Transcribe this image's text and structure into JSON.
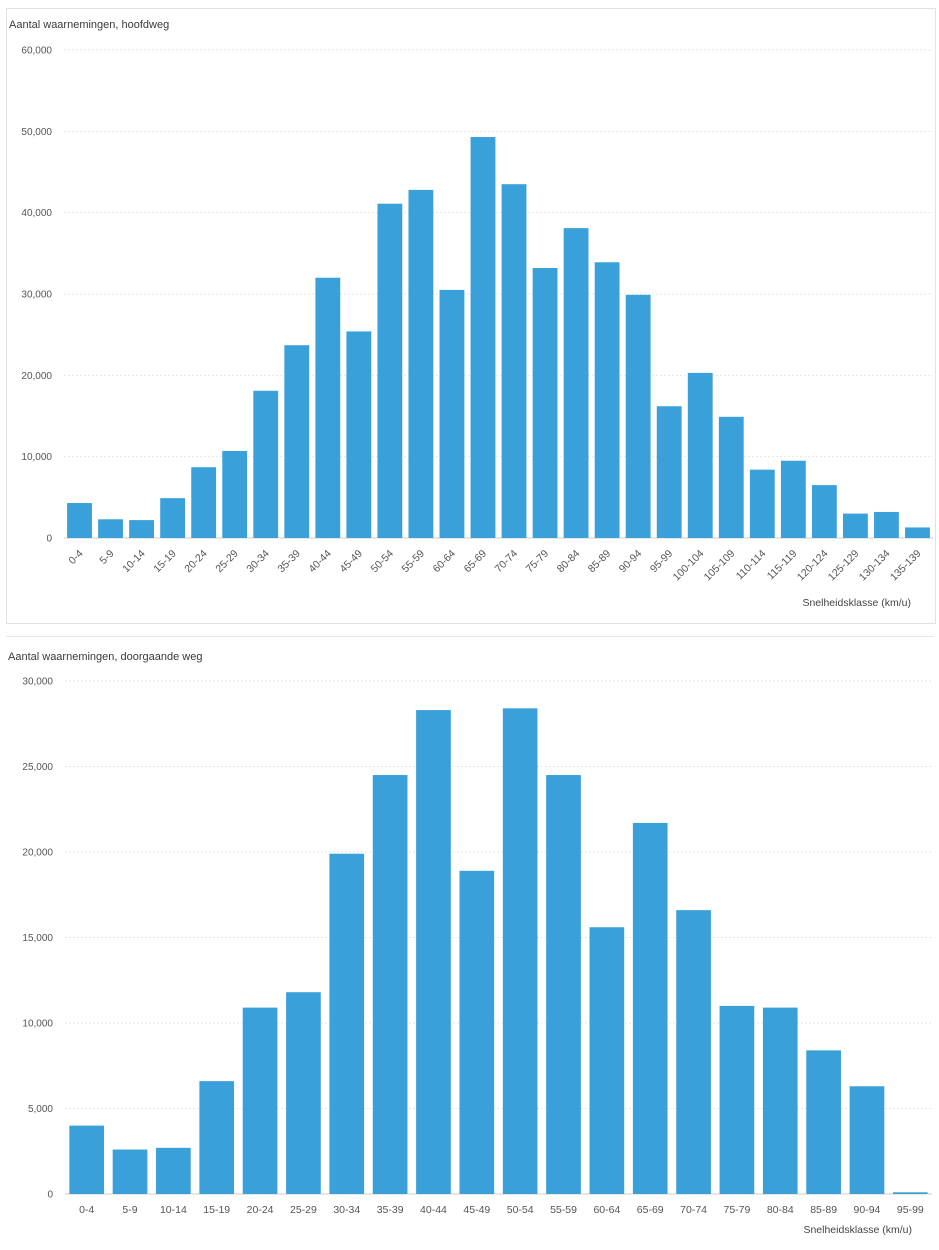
{
  "chart_data": [
    {
      "type": "bar",
      "title": "Aantal waarnemingen, hoofdweg",
      "xlabel": "Snelheidsklasse (km/u)",
      "ylabel": "Aantal waarnemingen",
      "ylim": [
        0,
        60000
      ],
      "yticks": [
        "0",
        "10,000",
        "20,000",
        "30,000",
        "40,000",
        "50,000",
        "60,000"
      ],
      "grid": true,
      "bar_color": "#3aa0d9",
      "categories": [
        "0-4",
        "5-9",
        "10-14",
        "15-19",
        "20-24",
        "25-29",
        "30-34",
        "35-39",
        "40-44",
        "45-49",
        "50-54",
        "55-59",
        "60-64",
        "65-69",
        "70-74",
        "75-79",
        "80-84",
        "85-89",
        "90-94",
        "95-99",
        "100-104",
        "105-109",
        "110-114",
        "115-119",
        "120-124",
        "125-129",
        "130-134",
        "135-139"
      ],
      "values": [
        4300,
        2300,
        2200,
        4900,
        8700,
        10700,
        18100,
        23700,
        32000,
        25400,
        41100,
        42800,
        30500,
        49300,
        43500,
        33200,
        38100,
        33900,
        29900,
        16200,
        20300,
        14900,
        8400,
        9500,
        6500,
        3000,
        3200,
        1300
      ]
    },
    {
      "type": "bar",
      "title": "Aantal waarnemingen, doorgaande weg",
      "xlabel": "Snelheidsklasse (km/u)",
      "ylabel": "Aantal waarnemingen",
      "ylim": [
        0,
        30000
      ],
      "yticks": [
        "0",
        "5,000",
        "10,000",
        "15,000",
        "20,000",
        "25,000",
        "30,000"
      ],
      "grid": true,
      "bar_color": "#3aa0d9",
      "categories": [
        "0-4",
        "5-9",
        "10-14",
        "15-19",
        "20-24",
        "25-29",
        "30-34",
        "35-39",
        "40-44",
        "45-49",
        "50-54",
        "55-59",
        "60-64",
        "65-69",
        "70-74",
        "75-79",
        "80-84",
        "85-89",
        "90-94",
        "95-99"
      ],
      "values": [
        4000,
        2600,
        2700,
        6600,
        10900,
        11800,
        19900,
        24500,
        28300,
        18900,
        28400,
        24500,
        15600,
        21700,
        16600,
        11000,
        10900,
        8400,
        6300,
        100
      ]
    }
  ]
}
